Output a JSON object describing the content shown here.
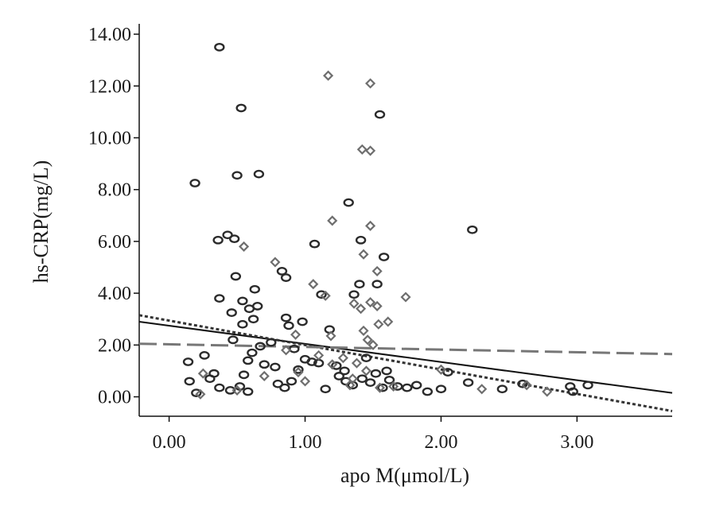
{
  "chart_data": {
    "type": "scatter",
    "xlabel": "apo M(μmol/L)",
    "ylabel": "hs-CRP(mg/L)",
    "xlim": [
      -0.22,
      3.7
    ],
    "ylim": [
      -0.75,
      14.4
    ],
    "x_ticks": [
      "0.00",
      "1.00",
      "2.00",
      "3.00"
    ],
    "x_tick_values": [
      0,
      1,
      2,
      3
    ],
    "y_ticks": [
      "0.00",
      "2.00",
      "4.00",
      "6.00",
      "8.00",
      "10.00",
      "12.00",
      "14.00"
    ],
    "y_tick_values": [
      0,
      2,
      4,
      6,
      8,
      10,
      12,
      14
    ],
    "grid": false,
    "legend": "none",
    "colors": {
      "circle": "#2b2b2b",
      "diamond": "#6e6e6e",
      "solid_line": "#111111",
      "dotted_line": "#333333",
      "dashed_line": "#777777",
      "axis": "#111111"
    },
    "series": [
      {
        "marker": "circle",
        "x": [
          0.37,
          0.53,
          1.55,
          0.19,
          0.5,
          0.66,
          1.32,
          0.36,
          0.43,
          0.48,
          2.23,
          1.07,
          1.41,
          1.58,
          0.83,
          0.49,
          0.86,
          1.4,
          1.53,
          0.63,
          1.36,
          1.12,
          0.37,
          0.54,
          0.65,
          0.59,
          0.46,
          0.86,
          0.98,
          0.62,
          0.54,
          1.18,
          0.88,
          0.47,
          0.67,
          0.75,
          0.92,
          1.0,
          1.05,
          1.23,
          1.29,
          0.14,
          0.26,
          0.33,
          0.55,
          0.61,
          0.7,
          0.78,
          0.95,
          1.1,
          1.45,
          1.6,
          1.68,
          1.75,
          1.82,
          1.9,
          2.0,
          2.05,
          2.2,
          2.45,
          2.6,
          2.95,
          3.08,
          0.15,
          0.2,
          0.3,
          0.37,
          0.45,
          0.52,
          0.58,
          0.8,
          0.85,
          0.9,
          1.15,
          1.25,
          1.35,
          1.42,
          1.48,
          1.52,
          1.57,
          1.62,
          2.97,
          0.58,
          1.3
        ],
        "y": [
          13.5,
          11.15,
          10.9,
          8.25,
          8.55,
          8.6,
          7.5,
          6.05,
          6.25,
          6.1,
          6.45,
          5.9,
          6.05,
          5.4,
          4.85,
          4.65,
          4.6,
          4.35,
          4.35,
          4.15,
          3.95,
          3.95,
          3.8,
          3.7,
          3.5,
          3.4,
          3.25,
          3.05,
          2.9,
          3.0,
          2.8,
          2.6,
          2.75,
          2.2,
          1.95,
          2.1,
          1.85,
          1.45,
          1.35,
          1.2,
          1.0,
          1.35,
          1.6,
          0.9,
          0.85,
          1.7,
          1.25,
          1.15,
          1.05,
          1.3,
          1.5,
          1.0,
          0.4,
          0.35,
          0.45,
          0.2,
          0.3,
          0.95,
          0.55,
          0.3,
          0.5,
          0.4,
          0.45,
          0.6,
          0.15,
          0.7,
          0.35,
          0.25,
          0.4,
          0.2,
          0.5,
          0.35,
          0.6,
          0.3,
          0.8,
          0.45,
          0.7,
          0.55,
          0.9,
          0.35,
          0.65,
          0.2,
          1.4,
          0.6
        ]
      },
      {
        "marker": "diamond",
        "x": [
          1.17,
          1.48,
          1.48,
          1.42,
          1.2,
          1.48,
          0.55,
          1.43,
          0.78,
          1.53,
          1.06,
          1.15,
          1.48,
          1.36,
          1.53,
          1.41,
          1.74,
          1.61,
          1.54,
          1.43,
          0.93,
          1.19,
          1.46,
          1.5,
          0.86,
          1.1,
          1.28,
          1.38,
          0.25,
          0.7,
          1.0,
          1.33,
          1.55,
          2.0,
          2.3,
          2.63,
          2.78,
          0.95,
          1.2,
          1.45,
          1.65,
          0.5,
          1.35,
          0.23
        ],
        "y": [
          12.4,
          12.1,
          9.5,
          9.55,
          6.8,
          6.6,
          5.8,
          5.5,
          5.2,
          4.85,
          4.35,
          3.9,
          3.65,
          3.6,
          3.5,
          3.4,
          3.85,
          2.9,
          2.8,
          2.55,
          2.4,
          2.35,
          2.2,
          2.0,
          1.8,
          1.6,
          1.5,
          1.3,
          0.9,
          0.8,
          0.6,
          0.45,
          0.35,
          1.05,
          0.3,
          0.45,
          0.2,
          0.95,
          1.25,
          1.0,
          0.4,
          0.25,
          0.7,
          0.1
        ]
      }
    ],
    "lines": [
      {
        "style": "solid",
        "x": [
          -0.22,
          3.7
        ],
        "y": [
          2.9,
          0.15
        ]
      },
      {
        "style": "dotted",
        "x": [
          -0.22,
          3.7
        ],
        "y": [
          3.15,
          -0.55
        ]
      },
      {
        "style": "dashed",
        "x": [
          -0.22,
          3.7
        ],
        "y": [
          2.05,
          1.65
        ]
      }
    ]
  }
}
